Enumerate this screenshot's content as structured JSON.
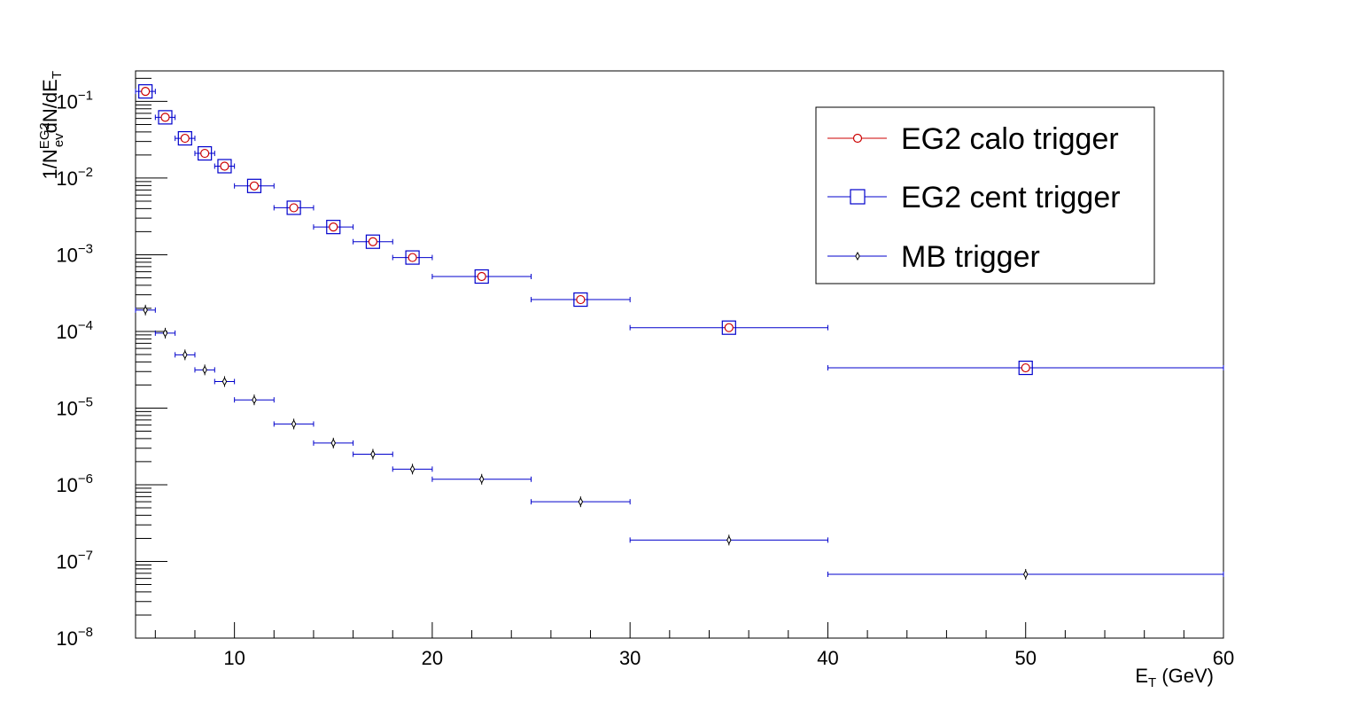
{
  "chart_data": {
    "type": "scatter",
    "title": "",
    "xlabel": {
      "main": "E",
      "sub": "T",
      "rest": " (GeV)"
    },
    "ylabel": {
      "a": "1/N",
      "sup": "EG2",
      "sub": "ev",
      "b": "dN/dE",
      "sub2": "T"
    },
    "xlim": [
      5,
      60
    ],
    "ylim": [
      1e-08,
      0.25
    ],
    "yscale": "log",
    "grid": false,
    "legend_position": "top-right",
    "x_ticks": [
      "10",
      "20",
      "30",
      "40",
      "50",
      "60"
    ],
    "y_ticks": [
      {
        "base": "10",
        "exp": "−1"
      },
      {
        "base": "10",
        "exp": "−2"
      },
      {
        "base": "10",
        "exp": "−3"
      },
      {
        "base": "10",
        "exp": "−4"
      },
      {
        "base": "10",
        "exp": "−5"
      },
      {
        "base": "10",
        "exp": "−6"
      },
      {
        "base": "10",
        "exp": "−7"
      },
      {
        "base": "10",
        "exp": "−8"
      }
    ],
    "bins": [
      {
        "x": 5.5,
        "lo": 5,
        "hi": 6
      },
      {
        "x": 6.5,
        "lo": 6,
        "hi": 7
      },
      {
        "x": 7.5,
        "lo": 7,
        "hi": 8
      },
      {
        "x": 8.5,
        "lo": 8,
        "hi": 9
      },
      {
        "x": 9.5,
        "lo": 9,
        "hi": 10
      },
      {
        "x": 11,
        "lo": 10,
        "hi": 12
      },
      {
        "x": 13,
        "lo": 12,
        "hi": 14
      },
      {
        "x": 15,
        "lo": 14,
        "hi": 16
      },
      {
        "x": 17,
        "lo": 16,
        "hi": 18
      },
      {
        "x": 19,
        "lo": 18,
        "hi": 20
      },
      {
        "x": 22.5,
        "lo": 20,
        "hi": 25
      },
      {
        "x": 27.5,
        "lo": 25,
        "hi": 30
      },
      {
        "x": 35,
        "lo": 30,
        "hi": 40
      },
      {
        "x": 50,
        "lo": 40,
        "hi": 60
      }
    ],
    "series": [
      {
        "name": "EG2 calo trigger",
        "marker": "circle",
        "color": "#cc0000",
        "values": [
          0.135,
          0.062,
          0.033,
          0.021,
          0.0143,
          0.0079,
          0.0041,
          0.0023,
          0.00148,
          0.00092,
          0.00052,
          0.00026,
          0.000112,
          3.35e-05
        ]
      },
      {
        "name": "EG2 cent trigger",
        "marker": "square",
        "color": "#0000cc",
        "values": [
          0.135,
          0.062,
          0.033,
          0.021,
          0.0143,
          0.0079,
          0.0041,
          0.0023,
          0.00148,
          0.00092,
          0.00052,
          0.00026,
          0.000112,
          3.35e-05
        ]
      },
      {
        "name": "MB trigger",
        "marker": "diamond",
        "color": "#000000",
        "values": [
          0.00019,
          9.5e-05,
          4.95e-05,
          3.15e-05,
          2.22e-05,
          1.28e-05,
          6.2e-06,
          3.5e-06,
          2.5e-06,
          1.6e-06,
          1.18e-06,
          6e-07,
          1.9e-07,
          6.8e-08
        ]
      }
    ],
    "error_bar_color": "#0000cc",
    "axis_color": "#000000"
  }
}
